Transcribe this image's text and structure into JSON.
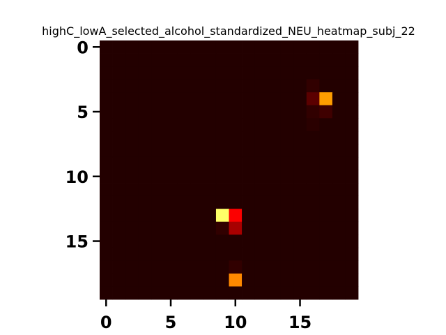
{
  "chart_data": {
    "type": "heatmap",
    "title": "highC_lowA_selected_alcohol_standardized_NEU_heatmap_subj_22",
    "xlabel": "",
    "ylabel": "",
    "rows": 20,
    "cols": 20,
    "x_ticks": [
      0,
      5,
      10,
      15
    ],
    "y_ticks": [
      0,
      5,
      10,
      15
    ],
    "colormap": "hot",
    "colorbar": false,
    "grid": false,
    "background_value": 0.05,
    "cells": [
      {
        "row": 4,
        "col": 17,
        "value": 0.6
      },
      {
        "row": 4,
        "col": 16,
        "value": 0.13
      },
      {
        "row": 3,
        "col": 16,
        "value": 0.07
      },
      {
        "row": 5,
        "col": 17,
        "value": 0.09
      },
      {
        "row": 5,
        "col": 16,
        "value": 0.07
      },
      {
        "row": 6,
        "col": 16,
        "value": 0.06
      },
      {
        "row": 13,
        "col": 9,
        "value": 0.85
      },
      {
        "row": 13,
        "col": 10,
        "value": 0.36
      },
      {
        "row": 14,
        "col": 10,
        "value": 0.24
      },
      {
        "row": 14,
        "col": 9,
        "value": 0.07
      },
      {
        "row": 18,
        "col": 10,
        "value": 0.57
      },
      {
        "row": 17,
        "col": 10,
        "value": 0.07
      }
    ]
  }
}
